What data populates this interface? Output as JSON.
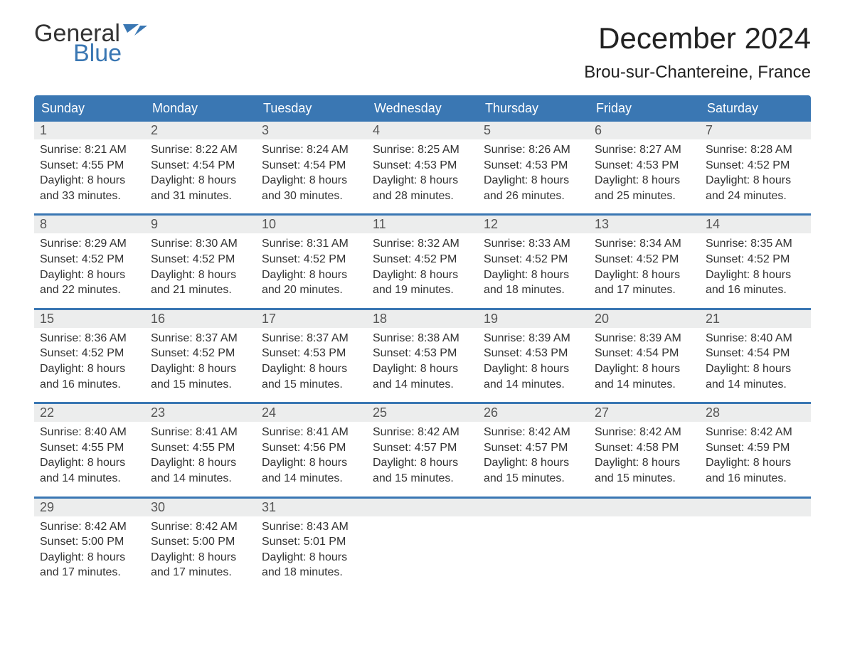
{
  "brand": {
    "word1": "General",
    "word2": "Blue"
  },
  "title": "December 2024",
  "location": "Brou-sur-Chantereine, France",
  "colors": {
    "accent": "#3a77b3",
    "header_bg": "#3a77b3",
    "header_text": "#ffffff",
    "daynum_bg": "#eceded",
    "text": "#333333",
    "background": "#ffffff"
  },
  "typography": {
    "title_fontsize": 42,
    "location_fontsize": 24,
    "weekday_fontsize": 18,
    "body_fontsize": 16,
    "logo_fontsize": 34
  },
  "layout": {
    "columns": 7,
    "rows": 5
  },
  "weekdays": [
    "Sunday",
    "Monday",
    "Tuesday",
    "Wednesday",
    "Thursday",
    "Friday",
    "Saturday"
  ],
  "weeks": [
    [
      {
        "day": "1",
        "sunrise": "Sunrise: 8:21 AM",
        "sunset": "Sunset: 4:55 PM",
        "dl1": "Daylight: 8 hours",
        "dl2": "and 33 minutes."
      },
      {
        "day": "2",
        "sunrise": "Sunrise: 8:22 AM",
        "sunset": "Sunset: 4:54 PM",
        "dl1": "Daylight: 8 hours",
        "dl2": "and 31 minutes."
      },
      {
        "day": "3",
        "sunrise": "Sunrise: 8:24 AM",
        "sunset": "Sunset: 4:54 PM",
        "dl1": "Daylight: 8 hours",
        "dl2": "and 30 minutes."
      },
      {
        "day": "4",
        "sunrise": "Sunrise: 8:25 AM",
        "sunset": "Sunset: 4:53 PM",
        "dl1": "Daylight: 8 hours",
        "dl2": "and 28 minutes."
      },
      {
        "day": "5",
        "sunrise": "Sunrise: 8:26 AM",
        "sunset": "Sunset: 4:53 PM",
        "dl1": "Daylight: 8 hours",
        "dl2": "and 26 minutes."
      },
      {
        "day": "6",
        "sunrise": "Sunrise: 8:27 AM",
        "sunset": "Sunset: 4:53 PM",
        "dl1": "Daylight: 8 hours",
        "dl2": "and 25 minutes."
      },
      {
        "day": "7",
        "sunrise": "Sunrise: 8:28 AM",
        "sunset": "Sunset: 4:52 PM",
        "dl1": "Daylight: 8 hours",
        "dl2": "and 24 minutes."
      }
    ],
    [
      {
        "day": "8",
        "sunrise": "Sunrise: 8:29 AM",
        "sunset": "Sunset: 4:52 PM",
        "dl1": "Daylight: 8 hours",
        "dl2": "and 22 minutes."
      },
      {
        "day": "9",
        "sunrise": "Sunrise: 8:30 AM",
        "sunset": "Sunset: 4:52 PM",
        "dl1": "Daylight: 8 hours",
        "dl2": "and 21 minutes."
      },
      {
        "day": "10",
        "sunrise": "Sunrise: 8:31 AM",
        "sunset": "Sunset: 4:52 PM",
        "dl1": "Daylight: 8 hours",
        "dl2": "and 20 minutes."
      },
      {
        "day": "11",
        "sunrise": "Sunrise: 8:32 AM",
        "sunset": "Sunset: 4:52 PM",
        "dl1": "Daylight: 8 hours",
        "dl2": "and 19 minutes."
      },
      {
        "day": "12",
        "sunrise": "Sunrise: 8:33 AM",
        "sunset": "Sunset: 4:52 PM",
        "dl1": "Daylight: 8 hours",
        "dl2": "and 18 minutes."
      },
      {
        "day": "13",
        "sunrise": "Sunrise: 8:34 AM",
        "sunset": "Sunset: 4:52 PM",
        "dl1": "Daylight: 8 hours",
        "dl2": "and 17 minutes."
      },
      {
        "day": "14",
        "sunrise": "Sunrise: 8:35 AM",
        "sunset": "Sunset: 4:52 PM",
        "dl1": "Daylight: 8 hours",
        "dl2": "and 16 minutes."
      }
    ],
    [
      {
        "day": "15",
        "sunrise": "Sunrise: 8:36 AM",
        "sunset": "Sunset: 4:52 PM",
        "dl1": "Daylight: 8 hours",
        "dl2": "and 16 minutes."
      },
      {
        "day": "16",
        "sunrise": "Sunrise: 8:37 AM",
        "sunset": "Sunset: 4:52 PM",
        "dl1": "Daylight: 8 hours",
        "dl2": "and 15 minutes."
      },
      {
        "day": "17",
        "sunrise": "Sunrise: 8:37 AM",
        "sunset": "Sunset: 4:53 PM",
        "dl1": "Daylight: 8 hours",
        "dl2": "and 15 minutes."
      },
      {
        "day": "18",
        "sunrise": "Sunrise: 8:38 AM",
        "sunset": "Sunset: 4:53 PM",
        "dl1": "Daylight: 8 hours",
        "dl2": "and 14 minutes."
      },
      {
        "day": "19",
        "sunrise": "Sunrise: 8:39 AM",
        "sunset": "Sunset: 4:53 PM",
        "dl1": "Daylight: 8 hours",
        "dl2": "and 14 minutes."
      },
      {
        "day": "20",
        "sunrise": "Sunrise: 8:39 AM",
        "sunset": "Sunset: 4:54 PM",
        "dl1": "Daylight: 8 hours",
        "dl2": "and 14 minutes."
      },
      {
        "day": "21",
        "sunrise": "Sunrise: 8:40 AM",
        "sunset": "Sunset: 4:54 PM",
        "dl1": "Daylight: 8 hours",
        "dl2": "and 14 minutes."
      }
    ],
    [
      {
        "day": "22",
        "sunrise": "Sunrise: 8:40 AM",
        "sunset": "Sunset: 4:55 PM",
        "dl1": "Daylight: 8 hours",
        "dl2": "and 14 minutes."
      },
      {
        "day": "23",
        "sunrise": "Sunrise: 8:41 AM",
        "sunset": "Sunset: 4:55 PM",
        "dl1": "Daylight: 8 hours",
        "dl2": "and 14 minutes."
      },
      {
        "day": "24",
        "sunrise": "Sunrise: 8:41 AM",
        "sunset": "Sunset: 4:56 PM",
        "dl1": "Daylight: 8 hours",
        "dl2": "and 14 minutes."
      },
      {
        "day": "25",
        "sunrise": "Sunrise: 8:42 AM",
        "sunset": "Sunset: 4:57 PM",
        "dl1": "Daylight: 8 hours",
        "dl2": "and 15 minutes."
      },
      {
        "day": "26",
        "sunrise": "Sunrise: 8:42 AM",
        "sunset": "Sunset: 4:57 PM",
        "dl1": "Daylight: 8 hours",
        "dl2": "and 15 minutes."
      },
      {
        "day": "27",
        "sunrise": "Sunrise: 8:42 AM",
        "sunset": "Sunset: 4:58 PM",
        "dl1": "Daylight: 8 hours",
        "dl2": "and 15 minutes."
      },
      {
        "day": "28",
        "sunrise": "Sunrise: 8:42 AM",
        "sunset": "Sunset: 4:59 PM",
        "dl1": "Daylight: 8 hours",
        "dl2": "and 16 minutes."
      }
    ],
    [
      {
        "day": "29",
        "sunrise": "Sunrise: 8:42 AM",
        "sunset": "Sunset: 5:00 PM",
        "dl1": "Daylight: 8 hours",
        "dl2": "and 17 minutes."
      },
      {
        "day": "30",
        "sunrise": "Sunrise: 8:42 AM",
        "sunset": "Sunset: 5:00 PM",
        "dl1": "Daylight: 8 hours",
        "dl2": "and 17 minutes."
      },
      {
        "day": "31",
        "sunrise": "Sunrise: 8:43 AM",
        "sunset": "Sunset: 5:01 PM",
        "dl1": "Daylight: 8 hours",
        "dl2": "and 18 minutes."
      },
      null,
      null,
      null,
      null
    ]
  ]
}
